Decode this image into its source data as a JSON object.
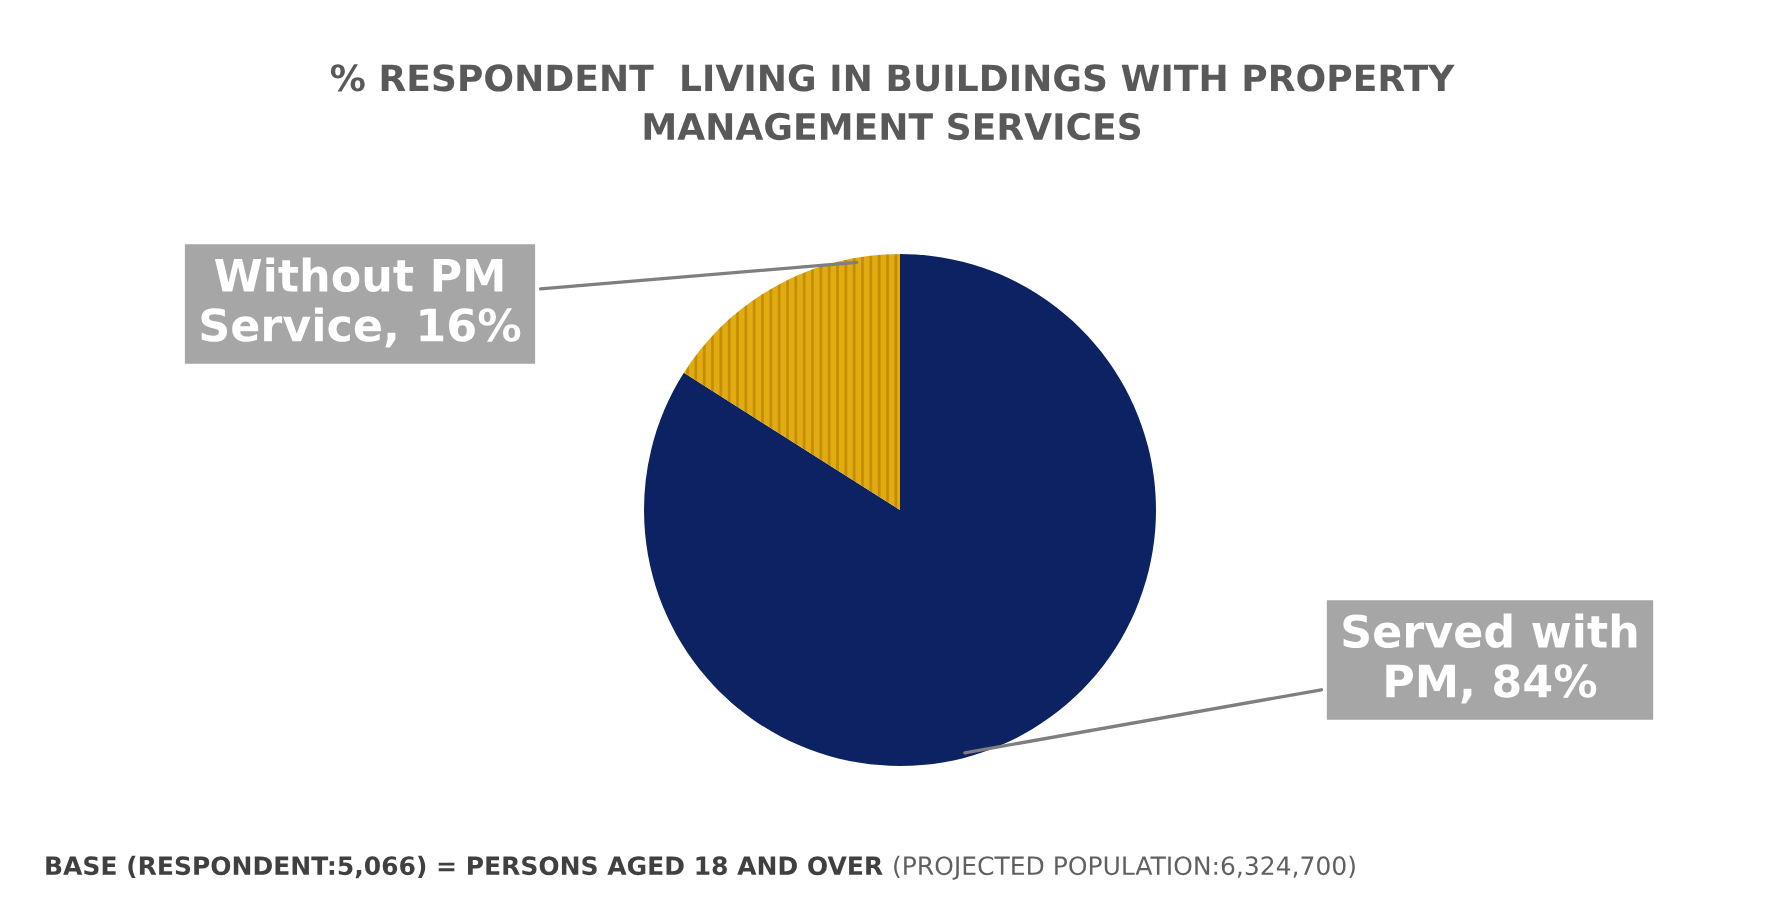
{
  "chart_data": {
    "type": "pie",
    "title": "% RESPONDENT  LIVING IN BUILDINGS WITH PROPERTY MANAGEMENT SERVICES",
    "categories": [
      "Served with PM",
      "Without PM Service"
    ],
    "values": [
      84,
      16
    ],
    "value_labels": [
      "84%",
      "16%"
    ],
    "colors": [
      "#0c2262",
      "#e2ab12"
    ],
    "annotations": [
      "BASE (RESPONDENT:5,066) = PERSONS AGED 18 AND OVER",
      "(PROJECTED POPULATION:6,324,700)"
    ]
  }
}
